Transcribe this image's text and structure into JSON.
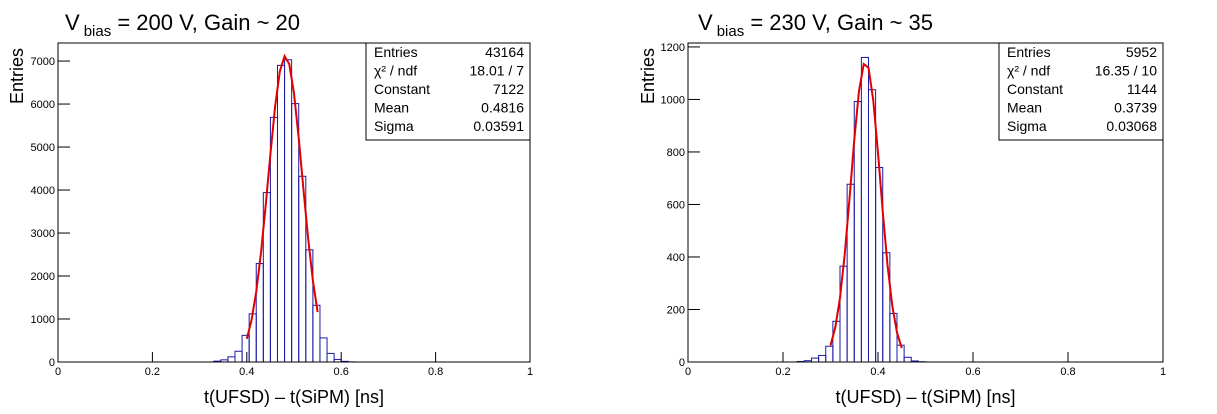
{
  "chart_data": [
    {
      "type": "histogram",
      "title": {
        "main": "V",
        "subscript": "bias",
        "rest": " = 200 V, Gain ~ 20"
      },
      "x_label": "t(UFSD) – t(SiPM) [ns]",
      "y_label": "Entries",
      "bins": [
        0.33,
        0.345,
        0.36,
        0.375,
        0.39,
        0.405,
        0.42,
        0.435,
        0.45,
        0.465,
        0.48,
        0.495,
        0.51,
        0.525,
        0.54,
        0.555,
        0.57,
        0.585,
        0.6,
        0.615,
        0.63
      ],
      "values": [
        20,
        50,
        120,
        250,
        620,
        1120,
        2290,
        3940,
        5690,
        6900,
        7030,
        6010,
        4320,
        2610,
        1320,
        560,
        200,
        60,
        15,
        3
      ],
      "color": "#1a1aa6",
      "fit": {
        "color": "#e00000",
        "x": [
          0.4,
          0.41,
          0.42,
          0.43,
          0.44,
          0.45,
          0.46,
          0.47,
          0.48,
          0.49,
          0.5,
          0.51,
          0.52,
          0.53,
          0.54,
          0.55
        ],
        "values": [
          538,
          974,
          1634,
          2535,
          3641,
          4834,
          5942,
          6760,
          7115,
          6929,
          6246,
          5208,
          4019,
          2870,
          1897,
          1160
        ]
      },
      "xlim": [
        0,
        1
      ],
      "ylim": [
        0,
        7420
      ],
      "xticks": [
        0,
        0.2,
        0.4,
        0.6,
        0.8,
        1
      ],
      "yticks": [
        0,
        1000,
        2000,
        3000,
        4000,
        5000,
        6000,
        7000
      ],
      "stats": [
        {
          "label": "Entries",
          "value": 43164
        },
        {
          "label": "χ² / ndf",
          "value": "18.01 / 7"
        },
        {
          "label": "Constant",
          "value": 7122
        },
        {
          "label": "Mean",
          "value": 0.4816
        },
        {
          "label": "Sigma",
          "value": 0.03591
        }
      ]
    },
    {
      "type": "histogram",
      "title": {
        "main": "V",
        "subscript": "bias",
        "rest": " = 230 V, Gain ~ 35"
      },
      "x_label": "t(UFSD) – t(SiPM) [ns]",
      "y_label": "Entries",
      "bins": [
        0.23,
        0.245,
        0.26,
        0.275,
        0.29,
        0.305,
        0.32,
        0.335,
        0.35,
        0.365,
        0.38,
        0.395,
        0.41,
        0.425,
        0.44,
        0.455,
        0.47,
        0.485,
        0.5,
        0.515,
        0.53
      ],
      "values": [
        2,
        5,
        15,
        25,
        60,
        155,
        365,
        677,
        992,
        1160,
        1037,
        741,
        416,
        185,
        64,
        18,
        4,
        1,
        0,
        0
      ],
      "color": "#1a1aa6",
      "fit": {
        "color": "#e00000",
        "x": [
          0.3,
          0.31,
          0.32,
          0.33,
          0.34,
          0.35,
          0.36,
          0.37,
          0.38,
          0.39,
          0.4,
          0.41,
          0.42,
          0.43,
          0.44,
          0.45
        ],
        "values": [
          63,
          131,
          244,
          411,
          622,
          845,
          1032,
          1135,
          1121,
          997,
          797,
          573,
          370,
          215,
          112,
          53
        ]
      },
      "xlim": [
        0,
        1
      ],
      "ylim": [
        0,
        1215
      ],
      "xticks": [
        0,
        0.2,
        0.4,
        0.6,
        0.8,
        1
      ],
      "yticks": [
        0,
        200,
        400,
        600,
        800,
        1000,
        1200
      ],
      "stats": [
        {
          "label": "Entries",
          "value": 5952
        },
        {
          "label": "χ² / ndf",
          "value": "16.35 / 10"
        },
        {
          "label": "Constant",
          "value": 1144
        },
        {
          "label": "Mean",
          "value": 0.3739
        },
        {
          "label": "Sigma",
          "value": 0.03068
        }
      ]
    }
  ]
}
